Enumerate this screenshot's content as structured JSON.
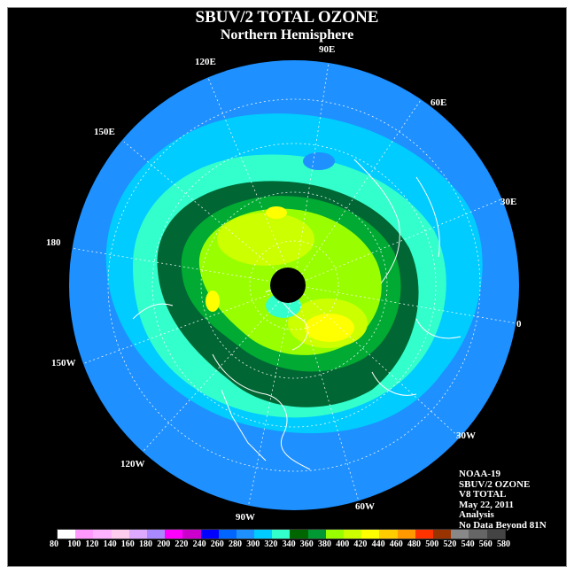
{
  "header": {
    "title": "SBUV/2 TOTAL OZONE",
    "subtitle": "Northern Hemisphere"
  },
  "longitude_labels": {
    "lon_90e": "90E",
    "lon_60e": "60E",
    "lon_30e": "30E",
    "lon_0": "0",
    "lon_30w": "30W",
    "lon_60w": "60W",
    "lon_90w": "90W",
    "lon_120w": "120W",
    "lon_150w": "150W",
    "lon_180": "180",
    "lon_150e": "150E",
    "lon_120e": "120E"
  },
  "info": {
    "satellite": "NOAA-19",
    "product": "SBUV/2 OZONE",
    "version": "V8 TOTAL",
    "date": "May 22, 2011",
    "type": "Analysis",
    "note": "No Data Beyond 81N"
  },
  "color_scale": {
    "ticks": [
      "80",
      "100",
      "120",
      "140",
      "160",
      "180",
      "200",
      "220",
      "240",
      "260",
      "280",
      "300",
      "320",
      "340",
      "360",
      "380",
      "400",
      "420",
      "440",
      "460",
      "480",
      "500",
      "520",
      "540",
      "560",
      "580"
    ],
    "colors": [
      "#ffffff",
      "#ff99ff",
      "#ffb3ff",
      "#ffccee",
      "#ddaaff",
      "#aa88ff",
      "#ff00ff",
      "#cc00cc",
      "#0000ff",
      "#0066ff",
      "#1e90ff",
      "#00ccff",
      "#33ffcc",
      "#006600",
      "#009933",
      "#99ff00",
      "#ccff00",
      "#ffff00",
      "#ffcc00",
      "#ff9900",
      "#ff3300",
      "#993300",
      "#888888",
      "#666666",
      "#444444"
    ]
  },
  "map_colors": {
    "outer": "#1e90ff",
    "mid": "#00ccff",
    "aqua": "#33ffcc",
    "dark_green": "#006633",
    "green": "#00aa33",
    "lime": "#99ff00",
    "yellow_green": "#ccff00",
    "yellow": "#ffff00",
    "pole": "#000000",
    "grid": "#ffffff"
  }
}
